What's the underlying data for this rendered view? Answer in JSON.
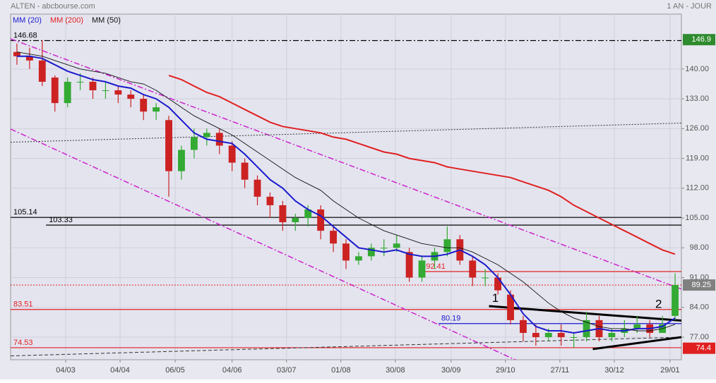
{
  "chart_data": {
    "type": "candlestick",
    "title": "ALTEN - abcbourse.com",
    "period": "1 AN - JOUR",
    "x": [
      0.5,
      1.5,
      2.5,
      3.5,
      4.5,
      5.5,
      6.5,
      7.5,
      8.5,
      9.5,
      10.5,
      11.5,
      12.5,
      13.5,
      14.5,
      15.5,
      16.5,
      17.5,
      18.5,
      19.5,
      20.5,
      21.5,
      22.5,
      23.5,
      24.5,
      25.5,
      26.5,
      27.5,
      28.5,
      29.5,
      30.5,
      31.5,
      32.5,
      33.5,
      34.5,
      35.5,
      36.5,
      37.5,
      38.5,
      39.5,
      40.5,
      41.5,
      42.5,
      43.5,
      44.5,
      45.5,
      46.5,
      47.5,
      48.5,
      49.5,
      50.5,
      51.5,
      52.5
    ],
    "open": [
      144,
      143,
      142,
      138,
      132,
      137,
      137,
      135,
      135,
      134,
      133,
      130,
      128,
      116,
      121,
      124,
      125,
      122,
      118,
      114,
      110,
      108,
      104,
      105,
      107,
      102,
      99,
      95,
      96,
      98,
      98,
      97,
      91,
      95,
      97,
      100,
      95,
      91,
      91,
      87,
      81,
      78,
      77,
      78,
      77,
      77,
      81,
      77,
      78,
      79,
      80,
      78,
      82
    ],
    "high": [
      146,
      145,
      146.7,
      138.5,
      138,
      139,
      138,
      137,
      136,
      135,
      134,
      132,
      129,
      122,
      126,
      126,
      126,
      123,
      119,
      115,
      111,
      109,
      106,
      108,
      108,
      103,
      100,
      97,
      99,
      100,
      101,
      98,
      96,
      98,
      103,
      101,
      96,
      93,
      92,
      88,
      82,
      80,
      79,
      80,
      78,
      83,
      82,
      79,
      81,
      82,
      81,
      82,
      92
    ],
    "low": [
      141,
      140,
      136,
      130,
      131,
      135,
      133,
      133,
      132,
      131,
      128,
      128,
      110,
      114,
      119,
      122,
      120,
      116,
      112,
      108,
      105,
      102,
      102,
      103,
      100,
      97,
      93,
      94,
      95,
      96,
      97,
      90,
      90,
      93,
      96,
      94,
      89,
      89,
      87,
      80,
      76,
      75,
      76,
      75,
      74.5,
      76,
      76,
      76,
      77,
      78,
      77,
      78,
      81
    ],
    "close": [
      143,
      142,
      137,
      132,
      137,
      137,
      135,
      135,
      134,
      133,
      130,
      131,
      116,
      121,
      124,
      125,
      122,
      118,
      114,
      110,
      108,
      104,
      105,
      107,
      102,
      99,
      95,
      96,
      98,
      98,
      99,
      91,
      95,
      97,
      100,
      95,
      91,
      91,
      88,
      81,
      78,
      77,
      78,
      77,
      77,
      81,
      77,
      78,
      79,
      80,
      78,
      80,
      89.25
    ],
    "up_color": "#33aa33",
    "down_color": "#cc2222",
    "series": [
      {
        "name": "MM (20)",
        "color": "#1a1acc",
        "values": [
          143,
          143,
          142.5,
          141,
          139.5,
          138.5,
          137.5,
          137,
          136,
          135.5,
          134,
          133,
          131,
          128,
          125,
          123.5,
          123,
          122.5,
          120,
          117,
          114,
          112,
          109,
          107,
          105.5,
          103,
          100.5,
          98,
          97.5,
          97,
          97.5,
          96.5,
          96,
          96,
          96.5,
          97.5,
          96,
          94,
          91,
          87,
          82.5,
          79.5,
          78.5,
          78.5,
          78,
          78.5,
          79,
          78.5,
          78.5,
          79,
          79,
          79.5,
          81.5
        ]
      },
      {
        "name": "MM (200)",
        "color": "#e02020",
        "values": [
          null,
          null,
          null,
          null,
          null,
          null,
          null,
          null,
          null,
          null,
          null,
          null,
          138.5,
          137.5,
          136,
          134.5,
          133.5,
          132,
          130.5,
          129,
          127.5,
          126.5,
          126,
          125.5,
          125,
          124,
          123.5,
          122.5,
          121.5,
          120.5,
          120,
          119,
          118.5,
          118,
          117,
          116.5,
          116,
          115.5,
          115,
          114.5,
          113.5,
          112.5,
          111.5,
          110,
          108,
          106.5,
          105,
          103.5,
          102,
          100.5,
          99,
          97.5,
          96.5
        ]
      },
      {
        "name": "MM (50)",
        "color": "#111111",
        "values": [
          144,
          143.5,
          143,
          142,
          141,
          140,
          139.5,
          139,
          138,
          137,
          136.5,
          135,
          133,
          131,
          129,
          127.5,
          126,
          124.5,
          122.5,
          120.5,
          118.5,
          116.5,
          114.5,
          113,
          111.5,
          109,
          107,
          105,
          103.5,
          102,
          101,
          100,
          99,
          98.5,
          98,
          98,
          97,
          95.5,
          94,
          92,
          90,
          87.5,
          85,
          83,
          81.5,
          80.5,
          79.5,
          79,
          79,
          78.5,
          78.5,
          79,
          80
        ]
      }
    ],
    "xlim": [
      0,
      53
    ],
    "ylim": [
      71.7,
      152.9
    ],
    "xticks": [
      {
        "value": 4.35,
        "label": "04/03"
      },
      {
        "value": 8.65,
        "label": "04/04"
      },
      {
        "value": 13.0,
        "label": "06/05"
      },
      {
        "value": 17.5,
        "label": "04/06"
      },
      {
        "value": 21.8,
        "label": "03/07"
      },
      {
        "value": 26.1,
        "label": "01/08"
      },
      {
        "value": 30.4,
        "label": "30/08"
      },
      {
        "value": 34.8,
        "label": "30/09"
      },
      {
        "value": 39.1,
        "label": "29/10"
      },
      {
        "value": 43.4,
        "label": "27/11"
      },
      {
        "value": 47.7,
        "label": "30/12"
      },
      {
        "value": 52.1,
        "label": "29/01"
      }
    ],
    "yticks": [
      {
        "value": 77,
        "label": "77.00"
      },
      {
        "value": 84,
        "label": "84.00"
      },
      {
        "value": 91,
        "label": "91.00"
      },
      {
        "value": 98,
        "label": "98.00"
      },
      {
        "value": 105,
        "label": "105.00"
      },
      {
        "value": 112,
        "label": "112.00"
      },
      {
        "value": 119,
        "label": "119.00"
      },
      {
        "value": 126,
        "label": "126.00"
      },
      {
        "value": 133,
        "label": "133.00"
      },
      {
        "value": 140,
        "label": "140.00"
      }
    ],
    "grid": true,
    "levels": [
      {
        "value": 146.68,
        "color": "#000000",
        "style": "dashdot",
        "from": 0
      },
      {
        "value": 105.14,
        "color": "#000000",
        "style": "solid",
        "from": 0
      },
      {
        "value": 103.33,
        "color": "#000000",
        "style": "solid",
        "from": 2.8
      },
      {
        "value": 92.41,
        "color": "#e02020",
        "style": "solid",
        "from": 32.6
      },
      {
        "value": 83.51,
        "color": "#e02020",
        "style": "solid",
        "from": 0
      },
      {
        "value": 80.19,
        "color": "#1a1acc",
        "style": "solid",
        "from": 33.8
      },
      {
        "value": 74.53,
        "color": "#e02020",
        "style": "solid",
        "from": 0
      }
    ],
    "price_boxes": [
      {
        "value": 146.9,
        "color": "#2e8b2e"
      },
      {
        "value": 89.25,
        "color": "#808080"
      },
      {
        "value": 74.4,
        "color": "#e02020"
      }
    ],
    "trendlines": [
      {
        "points": [
          [
            0,
            147.1
          ],
          [
            53,
            88.3
          ]
        ],
        "color": "#cc22cc",
        "style": "dashdot",
        "width": 1.5
      },
      {
        "points": [
          [
            0,
            125.9
          ],
          [
            43.25,
            67.1
          ]
        ],
        "color": "#cc22cc",
        "style": "dashdot",
        "width": 1.5
      },
      {
        "points": [
          [
            0,
            122.8
          ],
          [
            53,
            127.3
          ]
        ],
        "color": "#333333",
        "style": "dotted",
        "width": 1
      },
      {
        "points": [
          [
            0,
            72.6
          ],
          [
            53,
            77.0
          ]
        ],
        "color": "#333333",
        "style": "dashed",
        "width": 1
      },
      {
        "points": [
          [
            37.8,
            84.3
          ],
          [
            53,
            80.9
          ]
        ],
        "color": "#000000",
        "style": "solid",
        "width": 3
      },
      {
        "points": [
          [
            46.0,
            74.2
          ],
          [
            53,
            77.0
          ]
        ],
        "color": "#000000",
        "style": "solid",
        "width": 3
      },
      {
        "points": [
          [
            0,
            89.25
          ],
          [
            53,
            89.25
          ]
        ],
        "color": "#e02020",
        "style": "dotted",
        "width": 1
      }
    ],
    "annotations": [
      {
        "text": "1",
        "x": 38.3,
        "y": 86.0
      },
      {
        "text": "2",
        "x": 51.2,
        "y": 84.6
      }
    ]
  }
}
